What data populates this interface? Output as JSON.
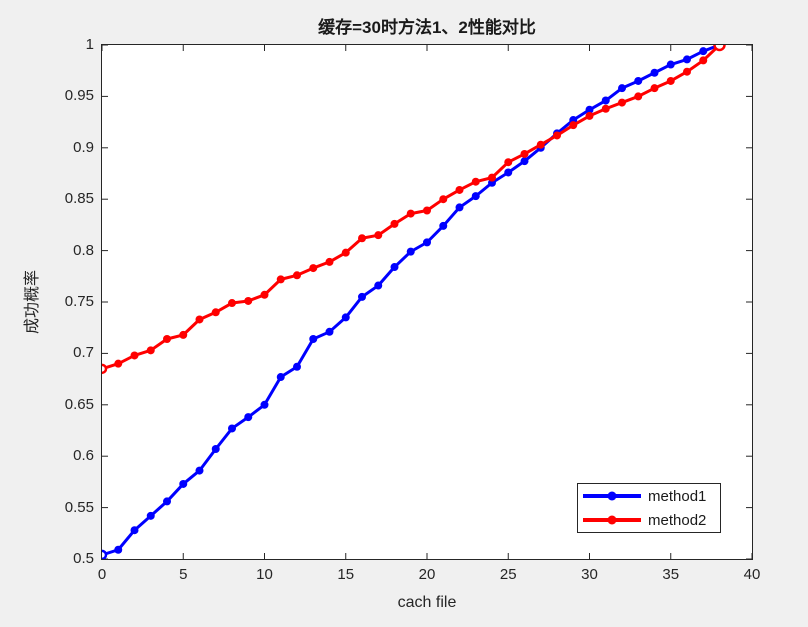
{
  "figure": {
    "background_color": "#f0f0f0",
    "plot_background_color": "#ffffff",
    "axis_color": "#262626"
  },
  "chart_data": {
    "type": "line",
    "title": "缓存=30时方法1、2性能对比",
    "xlabel": "cach file",
    "ylabel": "成功概率",
    "xlim": [
      0,
      40
    ],
    "ylim": [
      0.5,
      1
    ],
    "xticks": [
      0,
      5,
      10,
      15,
      20,
      25,
      30,
      35,
      40
    ],
    "yticks": [
      0.5,
      0.55,
      0.6,
      0.65,
      0.7,
      0.75,
      0.8,
      0.85,
      0.9,
      0.95,
      1
    ],
    "grid": false,
    "marker": "circle",
    "legend_position": "bottom-right",
    "x": [
      0,
      1,
      2,
      3,
      4,
      5,
      6,
      7,
      8,
      9,
      10,
      11,
      12,
      13,
      14,
      15,
      16,
      17,
      18,
      19,
      20,
      21,
      22,
      23,
      24,
      25,
      26,
      27,
      28,
      29,
      30,
      31,
      32,
      33,
      34,
      35,
      36,
      37,
      38
    ],
    "series": [
      {
        "name": "method1",
        "color": "#0000ff",
        "hollow_points": [
          0
        ],
        "values": [
          0.504,
          0.509,
          0.528,
          0.542,
          0.556,
          0.573,
          0.586,
          0.607,
          0.627,
          0.638,
          0.65,
          0.677,
          0.687,
          0.714,
          0.721,
          0.735,
          0.755,
          0.766,
          0.784,
          0.799,
          0.808,
          0.824,
          0.842,
          0.853,
          0.866,
          0.876,
          0.887,
          0.9,
          0.914,
          0.927,
          0.937,
          0.946,
          0.958,
          0.965,
          0.973,
          0.981,
          0.986,
          0.994,
          1.0
        ]
      },
      {
        "name": "method2",
        "color": "#ff0000",
        "hollow_points": [
          0,
          38
        ],
        "values": [
          0.685,
          0.69,
          0.698,
          0.703,
          0.714,
          0.718,
          0.733,
          0.74,
          0.749,
          0.751,
          0.757,
          0.772,
          0.776,
          0.783,
          0.789,
          0.798,
          0.812,
          0.815,
          0.826,
          0.836,
          0.839,
          0.85,
          0.859,
          0.867,
          0.871,
          0.886,
          0.894,
          0.903,
          0.912,
          0.922,
          0.931,
          0.938,
          0.944,
          0.95,
          0.958,
          0.965,
          0.974,
          0.985,
          1.0
        ]
      }
    ]
  }
}
